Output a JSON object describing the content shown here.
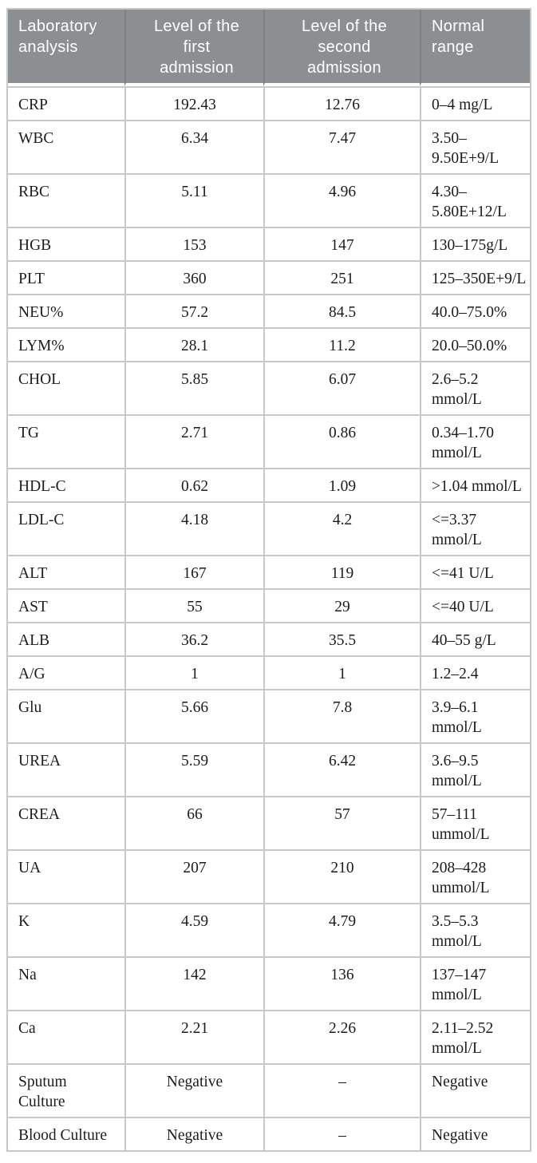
{
  "table": {
    "columns": [
      {
        "label": "Laboratory\nanalysis",
        "align": "left"
      },
      {
        "label": "Level of the\nfirst\nadmission",
        "align": "center"
      },
      {
        "label": "Level of the\nsecond\nadmission",
        "align": "center"
      },
      {
        "label": "Normal\nrange",
        "align": "left"
      }
    ],
    "rows": [
      {
        "analysis": "CRP",
        "first": "192.43",
        "second": "12.76",
        "normal": "0–4 mg/L"
      },
      {
        "analysis": "WBC",
        "first": "6.34",
        "second": "7.47",
        "normal": "3.50–\n9.50E+9/L"
      },
      {
        "analysis": "RBC",
        "first": "5.11",
        "second": "4.96",
        "normal": "4.30–\n5.80E+12/L"
      },
      {
        "analysis": "HGB",
        "first": "153",
        "second": "147",
        "normal": "130–175g/L"
      },
      {
        "analysis": "PLT",
        "first": "360",
        "second": "251",
        "normal": "125–350E+9/L"
      },
      {
        "analysis": "NEU%",
        "first": "57.2",
        "second": "84.5",
        "normal": "40.0–75.0%"
      },
      {
        "analysis": "LYM%",
        "first": "28.1",
        "second": "11.2",
        "normal": "20.0–50.0%"
      },
      {
        "analysis": "CHOL",
        "first": "5.85",
        "second": "6.07",
        "normal": "2.6–5.2\nmmol/L"
      },
      {
        "analysis": "TG",
        "first": "2.71",
        "second": "0.86",
        "normal": "0.34–1.70\nmmol/L"
      },
      {
        "analysis": "HDL-C",
        "first": "0.62",
        "second": "1.09",
        "normal": ">1.04 mmol/L"
      },
      {
        "analysis": "LDL-C",
        "first": "4.18",
        "second": "4.2",
        "normal": "<=3.37\nmmol/L"
      },
      {
        "analysis": "ALT",
        "first": "167",
        "second": "119",
        "normal": "<=41 U/L"
      },
      {
        "analysis": "AST",
        "first": "55",
        "second": "29",
        "normal": "<=40 U/L"
      },
      {
        "analysis": "ALB",
        "first": "36.2",
        "second": "35.5",
        "normal": "40–55 g/L"
      },
      {
        "analysis": "A/G",
        "first": "1",
        "second": "1",
        "normal": "1.2–2.4"
      },
      {
        "analysis": "Glu",
        "first": "5.66",
        "second": "7.8",
        "normal": "3.9–6.1\nmmol/L"
      },
      {
        "analysis": "UREA",
        "first": "5.59",
        "second": "6.42",
        "normal": "3.6–9.5\nmmol/L"
      },
      {
        "analysis": "CREA",
        "first": "66",
        "second": "57",
        "normal": "57–111\nummol/L"
      },
      {
        "analysis": "UA",
        "first": "207",
        "second": "210",
        "normal": "208–428\nummol/L"
      },
      {
        "analysis": "K",
        "first": "4.59",
        "second": "4.79",
        "normal": "3.5–5.3\nmmol/L"
      },
      {
        "analysis": "Na",
        "first": "142",
        "second": "136",
        "normal": "137–147\nmmol/L"
      },
      {
        "analysis": "Ca",
        "first": "2.21",
        "second": "2.26",
        "normal": "2.11–2.52\nmmol/L"
      },
      {
        "analysis": "Sputum\nCulture",
        "first": "Negative",
        "second": "–",
        "normal": "Negative"
      },
      {
        "analysis": "Blood Culture",
        "first": "Negative",
        "second": "–",
        "normal": "Negative"
      }
    ]
  },
  "colors": {
    "header_bg": "#8b8f92",
    "header_text": "#ffffff",
    "header_divider": "#7d8184",
    "grid_line": "#c7c9c9",
    "body_text": "#1c1c1c",
    "background": "#ffffff"
  }
}
